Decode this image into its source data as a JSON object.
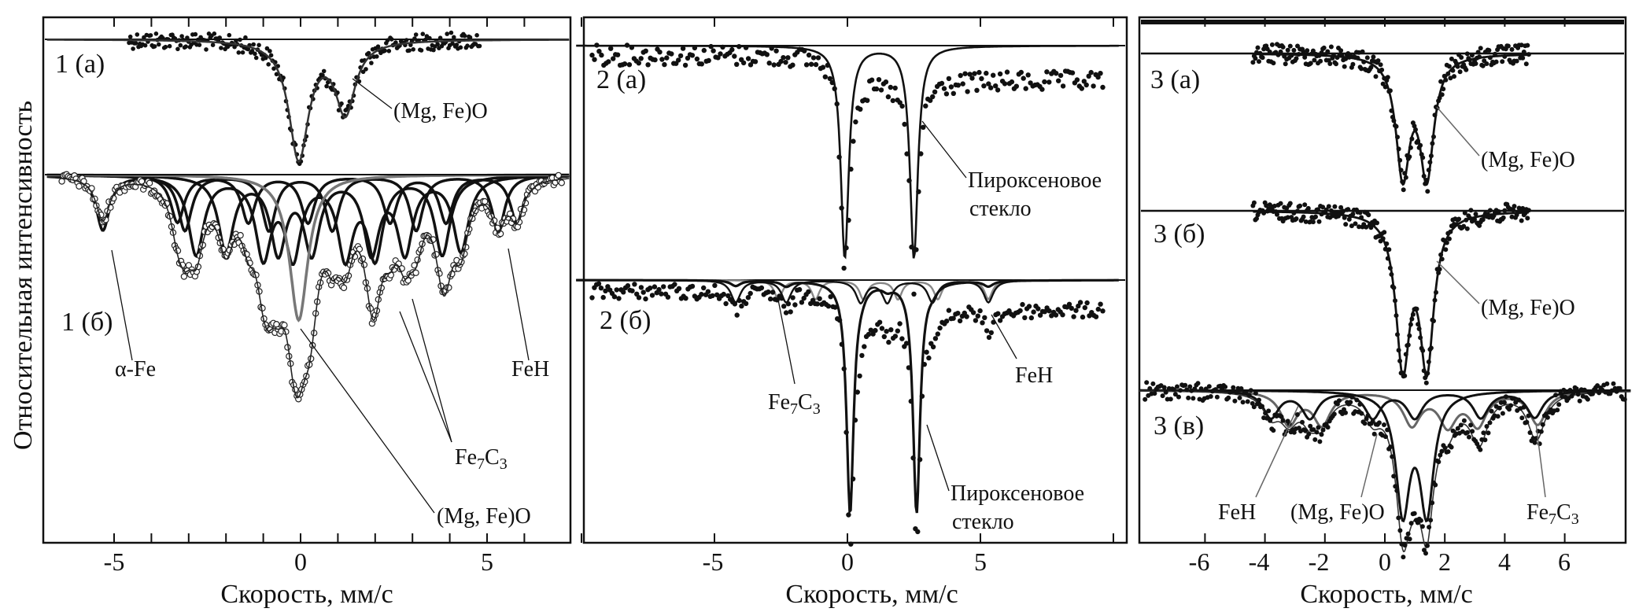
{
  "figure": {
    "ylabel": "Относительная интенсивность"
  },
  "chart_data": [
    {
      "type": "line",
      "xlabel": "Скорость, мм/с",
      "xticks": [
        "-5",
        "0",
        "5"
      ],
      "xlim": [
        -6.8,
        7.2
      ],
      "panel_labels": [
        "1 (а)",
        "1 (б)"
      ],
      "annotations": {
        "mgfeo_a": "(Mg, Fe)O",
        "alpha_fe": "α-Fe",
        "feh": "FeH",
        "fe7c3": "Fe7C3",
        "mgfeo_b": "(Mg, Fe)O"
      },
      "series": [
        {
          "spectrum": "1 (а)",
          "component": "(Mg, Fe)O",
          "type": "doublet",
          "centers": [
            -0.05,
            1.2
          ],
          "depth": [
            1.0,
            0.6
          ]
        },
        {
          "spectrum": "1 (б)",
          "component": "α-Fe",
          "type": "sextet",
          "centers": [
            -5.3,
            -3.1,
            -0.85,
            0.85,
            3.1,
            5.3
          ]
        },
        {
          "spectrum": "1 (б)",
          "component": "Fe7C3",
          "type": "sextet",
          "centers": [
            -2.8,
            -1.0,
            -0.2,
            1.2,
            2.0,
            3.8
          ]
        },
        {
          "spectrum": "1 (б)",
          "component": "Fe7C3",
          "type": "sextet",
          "centers": [
            -2.0,
            -0.6,
            0.3,
            1.9,
            2.8,
            4.3
          ]
        },
        {
          "spectrum": "1 (б)",
          "component": "FeH",
          "type": "sextet",
          "centers": [
            -3.3,
            -1.4,
            0.2,
            2.4,
            3.9,
            5.8
          ]
        },
        {
          "spectrum": "1 (б)",
          "component": "(Mg, Fe)O",
          "type": "singlet",
          "centers": [
            -0.05
          ]
        }
      ]
    },
    {
      "type": "line",
      "xlabel": "Скорость, мм/с",
      "xticks": [
        "-5",
        "0",
        "5"
      ],
      "xlim": [
        -10.2,
        10.2
      ],
      "panel_labels": [
        "2 (а)",
        "2 (б)"
      ],
      "annotations": {
        "glass_a_1": "Пироксеновое",
        "glass_a_2": "стекло",
        "fe7c3": "Fe7C3",
        "feh": "FeH",
        "glass_b_1": "Пироксеновое",
        "glass_b_2": "стекло"
      },
      "series": [
        {
          "spectrum": "2 (а)",
          "component": "Пироксеновое стекло",
          "type": "doublet",
          "centers": [
            -0.1,
            2.5
          ]
        },
        {
          "spectrum": "2 (б)",
          "component": "Пироксеновое стекло",
          "type": "doublet",
          "centers": [
            0.1,
            2.6
          ]
        },
        {
          "spectrum": "2 (б)",
          "component": "Fe7C3",
          "type": "sextet",
          "centers": [
            -4.2,
            -2.3,
            0.5,
            1.5,
            3.2,
            5.3
          ]
        },
        {
          "spectrum": "2 (б)",
          "component": "FeH",
          "type": "sextet",
          "centers": [
            -2.6,
            -1.2,
            0.6,
            1.9,
            3.4,
            5.3
          ]
        }
      ]
    },
    {
      "type": "line",
      "xlabel": "Скорость, мм/с",
      "xticks": [
        "-6",
        "-4",
        "-2",
        "0",
        "2",
        "4",
        "6"
      ],
      "xlim": [
        -8.2,
        8.2
      ],
      "panel_labels": [
        "3 (а)",
        "3 (б)",
        "3 (в)"
      ],
      "annotations": {
        "mgfeo_a": "(Mg, Fe)O",
        "mgfeo_b": "(Mg, Fe)O",
        "feh": "FeH",
        "mgfeo_c": "(Mg, Fe)O",
        "fe7c3": "Fe7C3"
      },
      "series": [
        {
          "spectrum": "3 (а)",
          "component": "(Mg, Fe)O",
          "type": "doublet",
          "centers": [
            0.6,
            1.4
          ]
        },
        {
          "spectrum": "3 (б)",
          "component": "(Mg, Fe)O",
          "type": "doublet",
          "centers": [
            0.6,
            1.4
          ]
        },
        {
          "spectrum": "3 (в)",
          "component": "(Mg, Fe)O",
          "type": "doublet",
          "centers": [
            0.6,
            1.4
          ]
        },
        {
          "spectrum": "3 (в)",
          "component": "FeH",
          "type": "sextet",
          "centers": [
            -3.2,
            -2.1,
            0.9,
            2.1,
            3.1,
            5.1
          ]
        },
        {
          "spectrum": "3 (в)",
          "component": "Fe7C3",
          "type": "sextet",
          "centers": [
            -3.8,
            -2.5,
            -0.4,
            1.0,
            3.2,
            5.0
          ]
        }
      ]
    }
  ]
}
